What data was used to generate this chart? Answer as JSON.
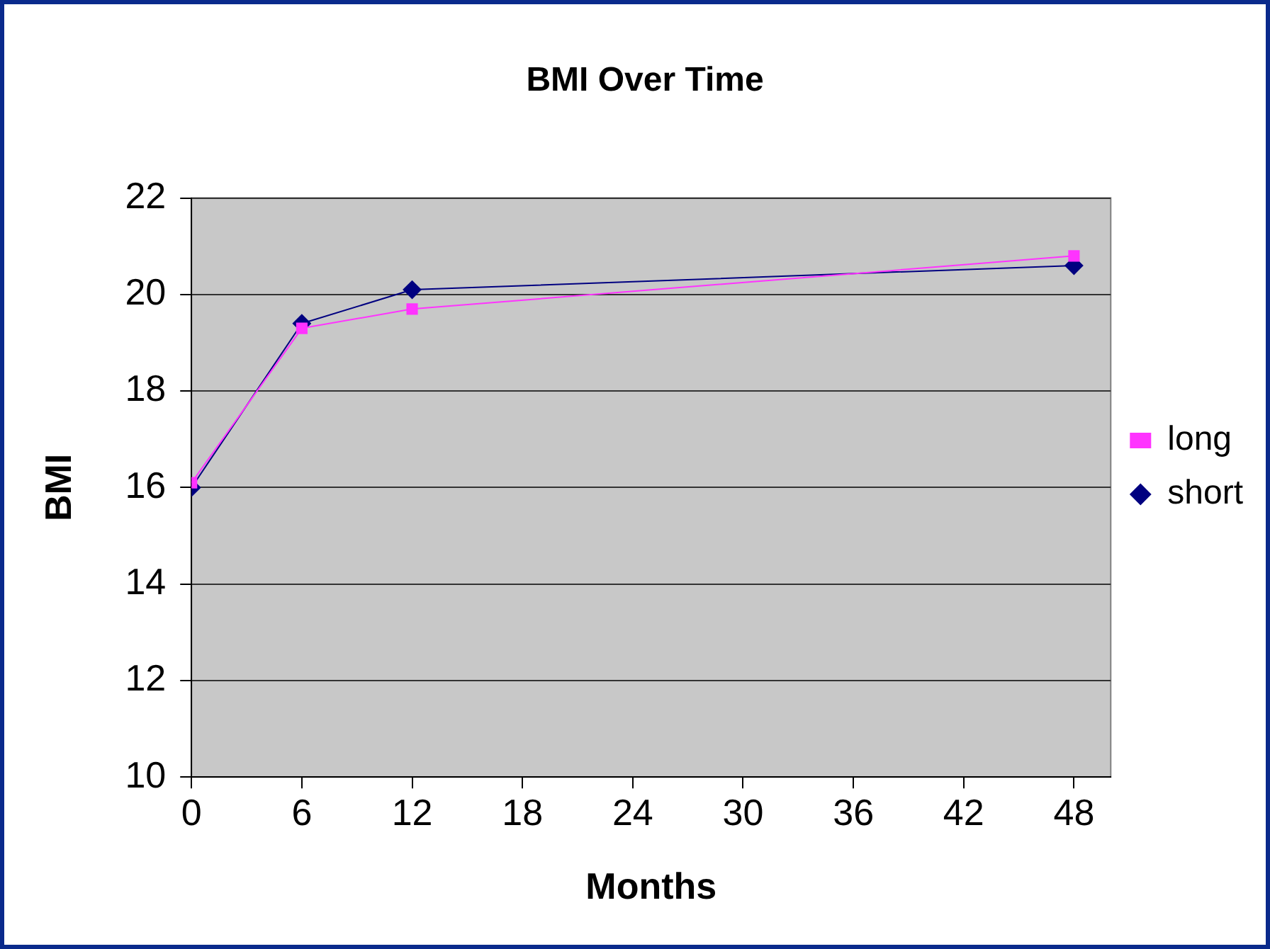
{
  "chart_data": {
    "type": "line",
    "title": "BMI Over Time",
    "xlabel": "Months",
    "ylabel": "BMI",
    "x": [
      0,
      6,
      12,
      48
    ],
    "series": [
      {
        "name": "short",
        "color": "#000080",
        "marker": "diamond",
        "values": [
          16.0,
          19.4,
          20.1,
          20.6
        ]
      },
      {
        "name": "long",
        "color": "#ff33ff",
        "marker": "square",
        "values": [
          16.1,
          19.3,
          19.7,
          20.8
        ]
      }
    ],
    "xlim": [
      0,
      50
    ],
    "xticks": [
      0,
      6,
      12,
      18,
      24,
      30,
      36,
      42,
      48
    ],
    "ylim": [
      10,
      22
    ],
    "yticks": [
      10,
      12,
      14,
      16,
      18,
      20,
      22
    ],
    "grid": "y",
    "legend": "right",
    "line_style": "solid"
  }
}
